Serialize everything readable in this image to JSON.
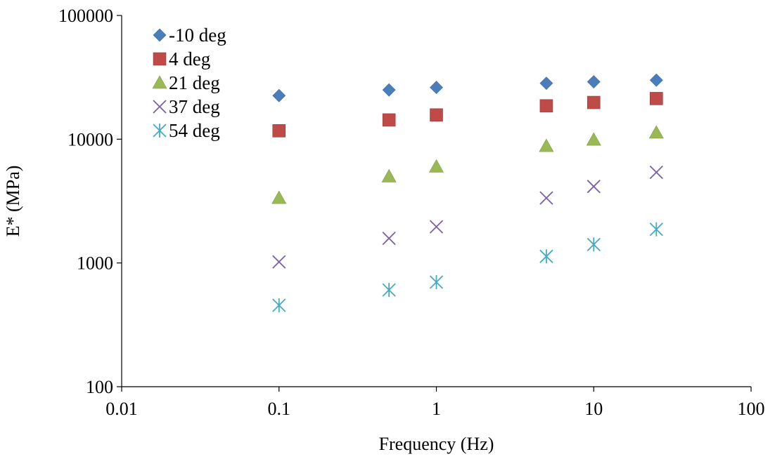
{
  "chart_data": {
    "type": "scatter",
    "title": "",
    "xlabel": "Frequency (Hz)",
    "ylabel": "E* (MPa)",
    "xscale": "log",
    "yscale": "log",
    "xlim": [
      0.01,
      100
    ],
    "ylim": [
      100,
      100000
    ],
    "xticks": [
      0.01,
      0.1,
      1,
      10,
      100
    ],
    "xtick_labels": [
      "0.01",
      "0.1",
      "1",
      "10",
      "100"
    ],
    "yticks": [
      100,
      1000,
      10000,
      100000
    ],
    "ytick_labels": [
      "100",
      "1000",
      "10000",
      "100000"
    ],
    "grid": false,
    "legend_position": "top-left",
    "x": [
      0.1,
      0.5,
      1,
      5,
      10,
      25
    ],
    "series": [
      {
        "name": "-10 deg",
        "marker": "diamond",
        "color": "#4a7ebb",
        "values": [
          22500,
          25000,
          26200,
          28300,
          29100,
          30000
        ]
      },
      {
        "name": "4 deg",
        "marker": "square",
        "color": "#be4b48",
        "values": [
          11700,
          14300,
          15700,
          18600,
          19800,
          21300
        ]
      },
      {
        "name": "21 deg",
        "marker": "triangle",
        "color": "#98b954",
        "values": [
          3350,
          5000,
          6000,
          8800,
          9900,
          11300
        ]
      },
      {
        "name": "37 deg",
        "marker": "x",
        "color": "#7d60a0",
        "values": [
          1020,
          1580,
          1960,
          3350,
          4150,
          5400
        ]
      },
      {
        "name": "54 deg",
        "marker": "star",
        "color": "#46aac5",
        "values": [
          455,
          605,
          700,
          1130,
          1410,
          1870
        ]
      }
    ]
  }
}
